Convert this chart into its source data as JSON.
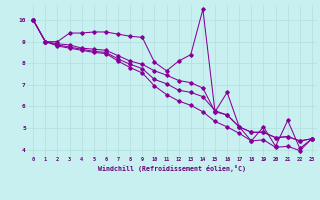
{
  "title": "",
  "xlabel": "Windchill (Refroidissement éolien,°C)",
  "ylabel": "",
  "background_color": "#c8f0f0",
  "grid_color": "#b0dede",
  "line_color": "#880099",
  "xlim": [
    -0.5,
    23.4
  ],
  "ylim": [
    3.7,
    10.7
  ],
  "xticks": [
    0,
    1,
    2,
    3,
    4,
    5,
    6,
    7,
    8,
    9,
    10,
    11,
    12,
    13,
    14,
    15,
    16,
    17,
    18,
    19,
    20,
    21,
    22,
    23
  ],
  "yticks": [
    4,
    5,
    6,
    7,
    8,
    9,
    10
  ],
  "series": [
    [
      10,
      9,
      9,
      9.4,
      9.4,
      9.45,
      9.45,
      9.35,
      9.25,
      9.2,
      8.05,
      7.65,
      8.1,
      8.4,
      10.5,
      5.75,
      6.65,
      5.05,
      4.4,
      5.05,
      4.15,
      5.35,
      4.05,
      4.5
    ],
    [
      10,
      9,
      8.9,
      8.85,
      8.7,
      8.65,
      8.6,
      8.35,
      8.1,
      7.95,
      7.65,
      7.45,
      7.2,
      7.1,
      6.85,
      5.75,
      5.6,
      5.05,
      4.8,
      4.8,
      4.55,
      4.6,
      4.4,
      4.5
    ],
    [
      10,
      9,
      8.85,
      8.75,
      8.65,
      8.55,
      8.5,
      8.2,
      7.95,
      7.75,
      7.25,
      7.05,
      6.75,
      6.65,
      6.45,
      5.8,
      5.6,
      5.05,
      4.8,
      4.8,
      4.55,
      4.6,
      4.4,
      4.5
    ],
    [
      10,
      9,
      8.8,
      8.7,
      8.6,
      8.5,
      8.45,
      8.1,
      7.8,
      7.55,
      6.95,
      6.55,
      6.25,
      6.05,
      5.75,
      5.3,
      5.05,
      4.75,
      4.4,
      4.45,
      4.1,
      4.15,
      3.95,
      4.5
    ]
  ]
}
